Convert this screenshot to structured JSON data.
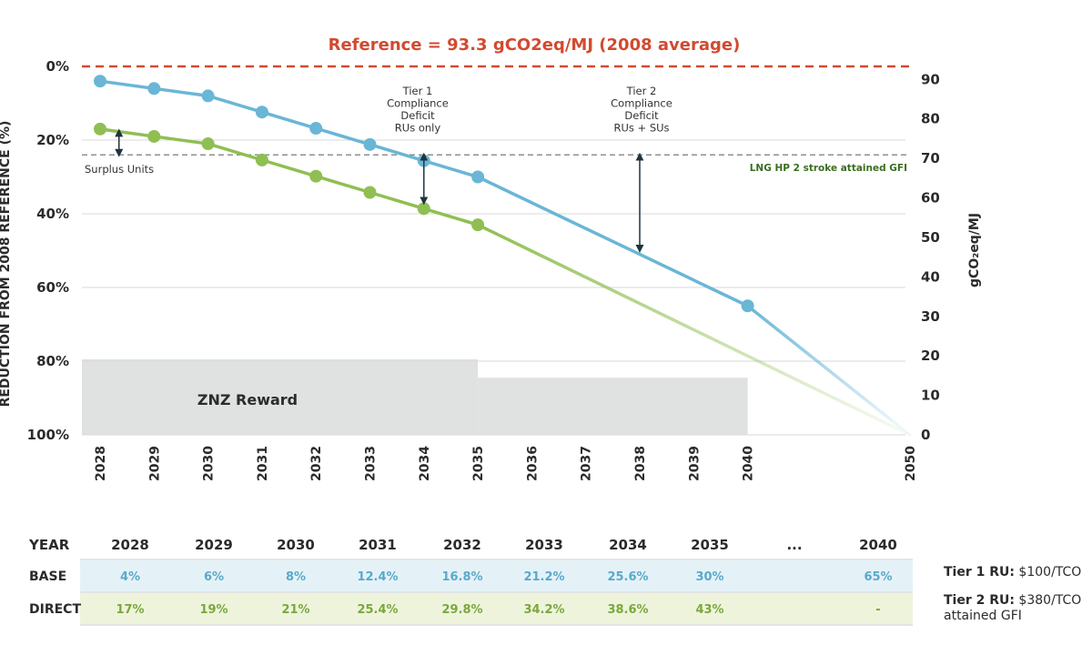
{
  "chart_data": {
    "type": "line",
    "title": "Reference = 93.3 gCO2eq/MJ (2008 average)",
    "ylabel_left": "REDUCTION FROM 2008 REFERENCE (%)",
    "ylabel_right": "gCO₂eq/MJ",
    "reference_value": 93.3,
    "ylim_left": [
      0,
      100
    ],
    "ylim_right": [
      0,
      93.3
    ],
    "left_ticks": [
      "0%",
      "20%",
      "40%",
      "60%",
      "80%",
      "100%"
    ],
    "right_ticks": [
      "90",
      "80",
      "70",
      "60",
      "50",
      "40",
      "30",
      "20",
      "10",
      "0"
    ],
    "x_ticks": [
      "2028",
      "2029",
      "2030",
      "2031",
      "2032",
      "2033",
      "2034",
      "2035",
      "2036",
      "2037",
      "2038",
      "2039",
      "2040",
      "2050"
    ],
    "series": [
      {
        "key": "base",
        "color": "#6ab6d6",
        "points": [
          [
            2028,
            4
          ],
          [
            2029,
            6
          ],
          [
            2030,
            8
          ],
          [
            2031,
            12.4
          ],
          [
            2032,
            16.8
          ],
          [
            2033,
            21.2
          ],
          [
            2034,
            25.6
          ],
          [
            2035,
            30
          ],
          [
            2040,
            65
          ]
        ],
        "extension": [
          [
            2040,
            65
          ],
          [
            2050,
            100
          ]
        ]
      },
      {
        "key": "direct",
        "color": "#8fbf52",
        "points": [
          [
            2028,
            17
          ],
          [
            2029,
            19
          ],
          [
            2030,
            21
          ],
          [
            2031,
            25.4
          ],
          [
            2032,
            29.8
          ],
          [
            2033,
            34.2
          ],
          [
            2034,
            38.6
          ],
          [
            2035,
            43
          ]
        ],
        "extension": [
          [
            2035,
            43
          ],
          [
            2050,
            100
          ]
        ]
      }
    ],
    "reference_line_label": "LNG HP 2 stroke attained GFI",
    "reference_line_value_pct": 24,
    "znz_reward_label": "ZNZ Reward",
    "znz_regions": [
      {
        "x_from": 2028,
        "x_to": 2035,
        "pct_from": 79.5,
        "pct_to": 100
      },
      {
        "x_from": 2035,
        "x_to": 2040,
        "pct_from": 84.5,
        "pct_to": 100
      }
    ],
    "annotations": {
      "surplus_units": "Surplus Units",
      "tier1": [
        "Tier 1",
        "Compliance",
        "Deficit",
        "RUs only"
      ],
      "tier2": [
        "Tier 2",
        "Compliance",
        "Deficit",
        "RUs + SUs"
      ]
    },
    "arrows": [
      {
        "year": 2028.35,
        "from_pct": 17.5,
        "to_pct": 24
      },
      {
        "year": 2034,
        "from_pct": 24,
        "to_pct": 37
      },
      {
        "year": 2038,
        "from_pct": 24,
        "to_pct": 50
      }
    ]
  },
  "table": {
    "header_label": "YEAR",
    "years": [
      "2028",
      "2029",
      "2030",
      "2031",
      "2032",
      "2033",
      "2034",
      "2035",
      "...",
      "2040"
    ],
    "rows": [
      {
        "key": "base",
        "label": "BASE",
        "values": [
          "4%",
          "6%",
          "8%",
          "12.4%",
          "16.8%",
          "21.2%",
          "25.6%",
          "30%",
          "",
          "65%"
        ],
        "color": "#e4f2f8"
      },
      {
        "key": "direct",
        "label": "DIRECT",
        "values": [
          "17%",
          "19%",
          "21%",
          "25.4%",
          "29.8%",
          "34.2%",
          "38.6%",
          "43%",
          "",
          "-"
        ],
        "color": "#eef4dc"
      }
    ]
  },
  "side_notes": {
    "tier1_label": "Tier 1 RU:",
    "tier1_value": " $100/TCO",
    "tier2_label": "Tier 2 RU:",
    "tier2_value": " $380/TCO",
    "tier2_cont": "attained GFI"
  }
}
